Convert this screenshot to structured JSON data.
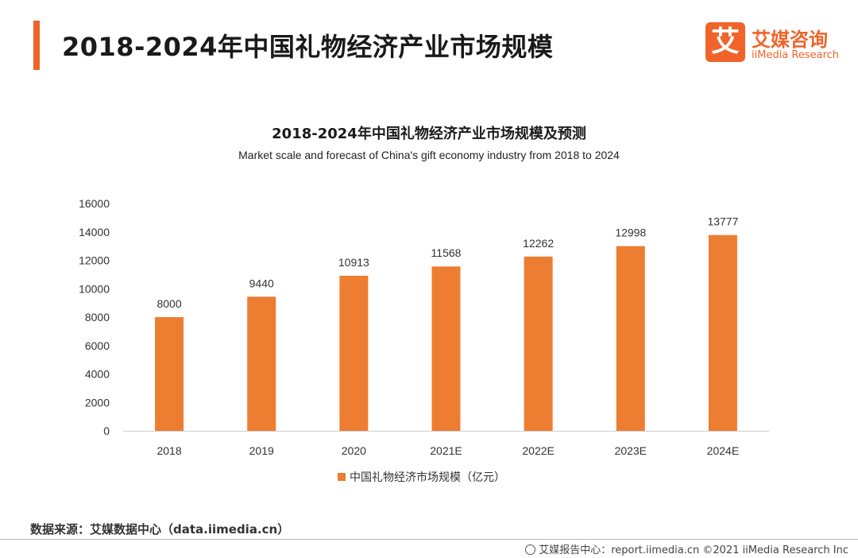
{
  "page": {
    "title": "2018-2024年中国礼物经济产业市场规模",
    "logo_mark": "艾",
    "logo_cn": "艾媒咨询",
    "logo_en": "iiMedia Research",
    "source": "数据来源：艾媒数据中心（data.iimedia.cn）",
    "footer": "艾媒报告中心：report.iimedia.cn  ©2021  iiMedia Research  Inc",
    "accent_color": "#f0642a"
  },
  "chart_data": {
    "type": "bar",
    "title": "2018-2024年中国礼物经济产业市场规模及预测",
    "subtitle": "Market scale and forecast of China's gift economy industry from 2018 to 2024",
    "categories": [
      "2018",
      "2019",
      "2020",
      "2021E",
      "2022E",
      "2023E",
      "2024E"
    ],
    "series": [
      {
        "name": "中国礼物经济市场规模（亿元）",
        "values": [
          8000,
          9440,
          10913,
          11568,
          12262,
          12998,
          13777
        ],
        "color": "#ed7d31"
      }
    ],
    "ylim": [
      0,
      16000
    ],
    "yticks": [
      "0",
      "2000",
      "4000",
      "6000",
      "8000",
      "10000",
      "12000",
      "14000",
      "16000"
    ],
    "grid": false,
    "legend": "bottom-center"
  }
}
